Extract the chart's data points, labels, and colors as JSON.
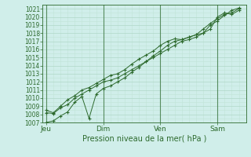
{
  "xlabel": "Pression niveau de la mer( hPa )",
  "ylim": [
    1007,
    1021.5
  ],
  "yticks": [
    1007,
    1008,
    1009,
    1010,
    1011,
    1012,
    1013,
    1014,
    1015,
    1016,
    1017,
    1018,
    1019,
    1020,
    1021
  ],
  "xtick_labels": [
    "Jeu",
    "Dim",
    "Ven",
    "Sam"
  ],
  "xtick_positions": [
    0,
    32,
    64,
    96
  ],
  "xlim": [
    -2,
    112
  ],
  "background_color": "#d0eeea",
  "grid_color_major": "#b0d8c8",
  "grid_color_minor": "#c0e4d8",
  "line_color": "#2d6a2d",
  "series1_x": [
    0,
    4,
    8,
    12,
    16,
    20,
    24,
    28,
    32,
    36,
    40,
    44,
    48,
    52,
    56,
    60,
    64,
    68,
    72,
    76,
    80,
    84,
    88,
    92,
    96,
    100,
    104,
    108
  ],
  "series1_y": [
    1008.2,
    1008.1,
    1008.8,
    1009.2,
    1010.0,
    1010.5,
    1011.0,
    1011.5,
    1012.0,
    1012.2,
    1012.5,
    1013.0,
    1013.5,
    1014.0,
    1014.5,
    1015.0,
    1015.5,
    1016.0,
    1016.5,
    1017.0,
    1017.2,
    1017.5,
    1018.0,
    1019.0,
    1019.5,
    1020.2,
    1020.8,
    1021.1
  ],
  "series2_x": [
    0,
    4,
    8,
    12,
    16,
    20,
    24,
    28,
    32,
    36,
    40,
    44,
    48,
    52,
    56,
    60,
    64,
    68,
    72,
    76,
    80,
    84,
    88,
    92,
    96,
    100,
    104,
    108
  ],
  "series2_y": [
    1007.0,
    1007.2,
    1007.8,
    1008.3,
    1009.5,
    1010.2,
    1007.5,
    1010.5,
    1011.2,
    1011.5,
    1012.0,
    1012.5,
    1013.2,
    1013.8,
    1014.5,
    1015.2,
    1015.8,
    1016.5,
    1017.0,
    1017.2,
    1017.5,
    1017.8,
    1018.0,
    1018.5,
    1020.0,
    1020.5,
    1020.3,
    1020.8
  ],
  "series3_x": [
    0,
    4,
    8,
    12,
    16,
    20,
    24,
    28,
    32,
    36,
    40,
    44,
    48,
    52,
    56,
    60,
    64,
    68,
    72,
    76,
    80,
    84,
    88,
    92,
    96,
    100,
    104,
    108
  ],
  "series3_y": [
    1008.5,
    1008.2,
    1009.0,
    1009.8,
    1010.3,
    1011.0,
    1011.3,
    1011.8,
    1012.3,
    1012.8,
    1013.0,
    1013.5,
    1014.2,
    1014.8,
    1015.3,
    1015.8,
    1016.5,
    1017.0,
    1017.3,
    1017.2,
    1017.5,
    1017.8,
    1018.5,
    1019.2,
    1019.8,
    1020.3,
    1020.5,
    1021.0
  ]
}
